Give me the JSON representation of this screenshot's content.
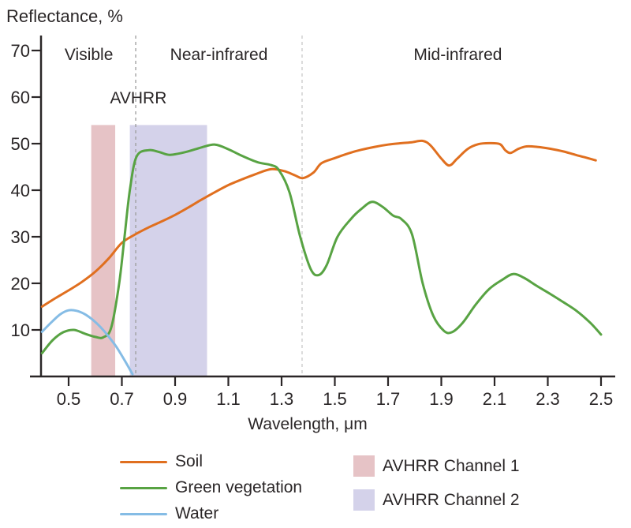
{
  "chart_data": {
    "type": "line",
    "title": "Reflectance, %",
    "xlabel": "Wavelength, μm",
    "annotation": "AVHRR",
    "xlim": [
      0.4,
      2.55
    ],
    "ylim": [
      0,
      73
    ],
    "grid": false,
    "legend_position": "bottom",
    "x_ticks": [
      "0.5",
      "0.7",
      "0.9",
      "1.1",
      "1.3",
      "1.5",
      "1.7",
      "1.9",
      "2.1",
      "2.3",
      "2.5"
    ],
    "y_ticks": [
      "70",
      "60",
      "50",
      "40",
      "30",
      "20",
      "10"
    ],
    "regions": [
      {
        "label": "Visible",
        "from": 0.4,
        "to": 0.752
      },
      {
        "label": "Near-infrared",
        "from": 0.752,
        "to": 1.377
      },
      {
        "label": "Mid-infrared",
        "from": 1.377,
        "to": 2.547
      }
    ],
    "boundaries": [
      {
        "x": 0.752,
        "color": "#9b9b9b"
      },
      {
        "x": 1.377,
        "color": "#c9c9c9"
      }
    ],
    "bands": [
      {
        "name": "AVHRR Channel 1",
        "from": 0.585,
        "to": 0.675,
        "top": 54,
        "color": "#e6c3c6"
      },
      {
        "name": "AVHRR Channel 2",
        "from": 0.73,
        "to": 1.02,
        "top": 54,
        "color": "#d4d2ea"
      }
    ],
    "series": [
      {
        "name": "Soil",
        "color": "#e06f1f",
        "points": [
          [
            0.4,
            15.0
          ],
          [
            0.45,
            16.8
          ],
          [
            0.5,
            18.5
          ],
          [
            0.55,
            20.3
          ],
          [
            0.6,
            22.5
          ],
          [
            0.65,
            25.3
          ],
          [
            0.7,
            28.7
          ],
          [
            0.75,
            30.5
          ],
          [
            0.8,
            32.0
          ],
          [
            0.85,
            33.3
          ],
          [
            0.9,
            34.7
          ],
          [
            0.95,
            36.3
          ],
          [
            1.0,
            38.0
          ],
          [
            1.05,
            39.6
          ],
          [
            1.1,
            41.1
          ],
          [
            1.15,
            42.3
          ],
          [
            1.2,
            43.4
          ],
          [
            1.26,
            44.5
          ],
          [
            1.31,
            44.1
          ],
          [
            1.35,
            43.2
          ],
          [
            1.38,
            42.6
          ],
          [
            1.42,
            43.8
          ],
          [
            1.45,
            45.8
          ],
          [
            1.5,
            46.9
          ],
          [
            1.55,
            47.9
          ],
          [
            1.6,
            48.7
          ],
          [
            1.65,
            49.3
          ],
          [
            1.7,
            49.8
          ],
          [
            1.75,
            50.1
          ],
          [
            1.79,
            50.3
          ],
          [
            1.83,
            50.6
          ],
          [
            1.86,
            49.6
          ],
          [
            1.9,
            46.8
          ],
          [
            1.93,
            45.3
          ],
          [
            1.96,
            46.8
          ],
          [
            2.0,
            48.9
          ],
          [
            2.04,
            49.9
          ],
          [
            2.08,
            50.1
          ],
          [
            2.12,
            49.9
          ],
          [
            2.14,
            48.6
          ],
          [
            2.16,
            48.0
          ],
          [
            2.19,
            48.9
          ],
          [
            2.22,
            49.4
          ],
          [
            2.26,
            49.3
          ],
          [
            2.31,
            48.9
          ],
          [
            2.36,
            48.3
          ],
          [
            2.41,
            47.5
          ],
          [
            2.45,
            46.9
          ],
          [
            2.48,
            46.4
          ]
        ]
      },
      {
        "name": "Green vegetation",
        "color": "#58a343",
        "points": [
          [
            0.4,
            5.0
          ],
          [
            0.44,
            7.8
          ],
          [
            0.48,
            9.5
          ],
          [
            0.52,
            10.0
          ],
          [
            0.56,
            9.2
          ],
          [
            0.6,
            8.5
          ],
          [
            0.63,
            8.4
          ],
          [
            0.66,
            10.5
          ],
          [
            0.69,
            20.0
          ],
          [
            0.71,
            30.0
          ],
          [
            0.73,
            40.0
          ],
          [
            0.755,
            47.2
          ],
          [
            0.8,
            48.6
          ],
          [
            0.84,
            48.2
          ],
          [
            0.88,
            47.6
          ],
          [
            0.94,
            48.2
          ],
          [
            1.0,
            49.2
          ],
          [
            1.05,
            49.8
          ],
          [
            1.1,
            48.8
          ],
          [
            1.15,
            47.4
          ],
          [
            1.21,
            46.0
          ],
          [
            1.26,
            45.4
          ],
          [
            1.29,
            44.3
          ],
          [
            1.33,
            39.5
          ],
          [
            1.37,
            30.0
          ],
          [
            1.41,
            23.0
          ],
          [
            1.44,
            21.8
          ],
          [
            1.47,
            24.0
          ],
          [
            1.51,
            30.0
          ],
          [
            1.56,
            33.8
          ],
          [
            1.6,
            36.0
          ],
          [
            1.64,
            37.5
          ],
          [
            1.68,
            36.4
          ],
          [
            1.72,
            34.5
          ],
          [
            1.75,
            33.8
          ],
          [
            1.79,
            30.5
          ],
          [
            1.83,
            20.0
          ],
          [
            1.87,
            13.0
          ],
          [
            1.91,
            9.8
          ],
          [
            1.94,
            9.5
          ],
          [
            1.98,
            11.5
          ],
          [
            2.03,
            15.5
          ],
          [
            2.08,
            18.8
          ],
          [
            2.13,
            20.8
          ],
          [
            2.17,
            22.0
          ],
          [
            2.21,
            21.2
          ],
          [
            2.26,
            19.4
          ],
          [
            2.31,
            17.7
          ],
          [
            2.36,
            15.9
          ],
          [
            2.41,
            14.0
          ],
          [
            2.46,
            11.5
          ],
          [
            2.5,
            9.0
          ]
        ]
      },
      {
        "name": "Water",
        "color": "#85bce5",
        "points": [
          [
            0.4,
            9.6
          ],
          [
            0.44,
            11.9
          ],
          [
            0.47,
            13.4
          ],
          [
            0.5,
            14.2
          ],
          [
            0.53,
            14.1
          ],
          [
            0.56,
            13.4
          ],
          [
            0.59,
            12.2
          ],
          [
            0.62,
            10.6
          ],
          [
            0.65,
            8.6
          ],
          [
            0.68,
            6.3
          ],
          [
            0.71,
            3.5
          ],
          [
            0.74,
            0.5
          ]
        ]
      }
    ],
    "axis_color": "#2a2627"
  }
}
